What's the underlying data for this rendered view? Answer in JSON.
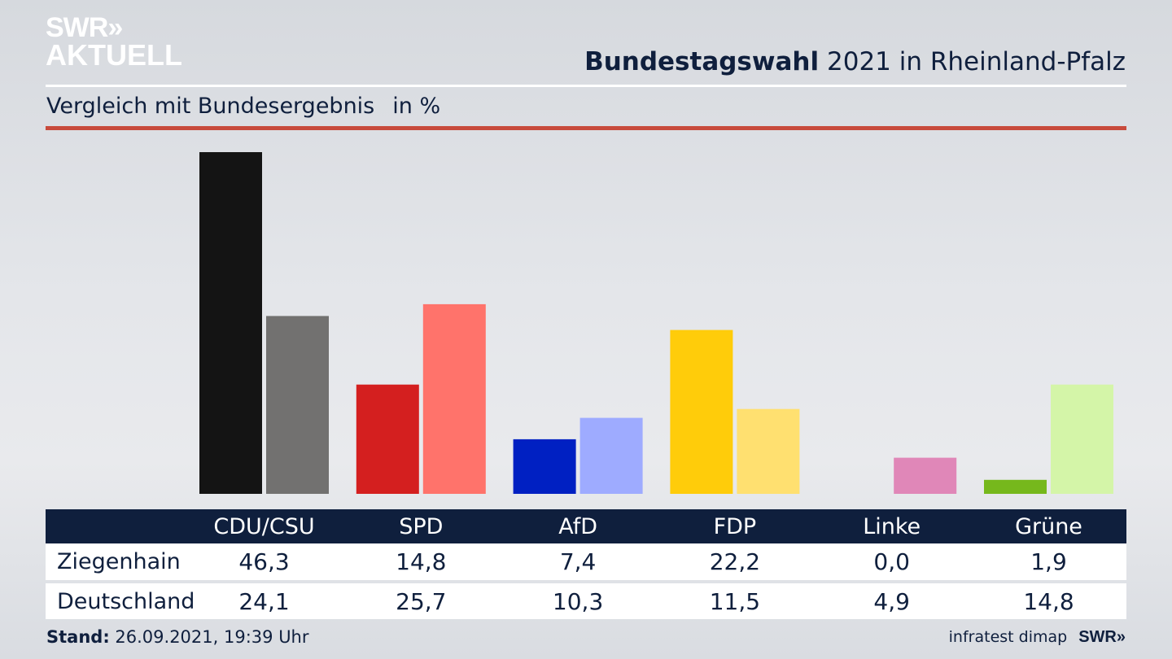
{
  "brand": {
    "logo_line1": "SWR",
    "logo_arrows": "»",
    "logo_line2": "AKTUELL"
  },
  "header": {
    "title_bold": "Bundestagswahl",
    "title_rest": "2021 in Rheinland-Pfalz",
    "subtitle": "Vergleich mit Bundesergebnis",
    "unit": "in %"
  },
  "colors": {
    "navy": "#0f1f3d",
    "accent_red_rule": "#c84a3c"
  },
  "chart_data": {
    "type": "bar",
    "title": "Bundestagswahl 2021 in Rheinland-Pfalz",
    "subtitle": "Vergleich mit Bundesergebnis in %",
    "categories": [
      "CDU/CSU",
      "SPD",
      "AfD",
      "FDP",
      "Linke",
      "Grüne"
    ],
    "series": [
      {
        "name": "Ziegenhain",
        "values": [
          46.3,
          14.8,
          7.4,
          22.2,
          0.0,
          1.9
        ],
        "labels": [
          "46,3",
          "14,8",
          "7,4",
          "22,2",
          "0,0",
          "1,9"
        ],
        "colors": [
          "#141414",
          "#d41f1f",
          "#0020c2",
          "#ffcc0a",
          "#d6428c",
          "#76b81c"
        ]
      },
      {
        "name": "Deutschland",
        "values": [
          24.1,
          25.7,
          10.3,
          11.5,
          4.9,
          14.8
        ],
        "labels": [
          "24,1",
          "25,7",
          "10,3",
          "11,5",
          "4,9",
          "14,8"
        ],
        "colors": [
          "#727170",
          "#ff736b",
          "#9eabff",
          "#ffe070",
          "#e087b8",
          "#d4f5a8"
        ]
      }
    ],
    "ylim": [
      0,
      46.3
    ],
    "grid": false,
    "legend": "table-below"
  },
  "footer": {
    "stand_label": "Stand:",
    "stand_value": "26.09.2021, 19:39 Uhr",
    "source": "infratest dimap",
    "brand": "SWR»"
  }
}
